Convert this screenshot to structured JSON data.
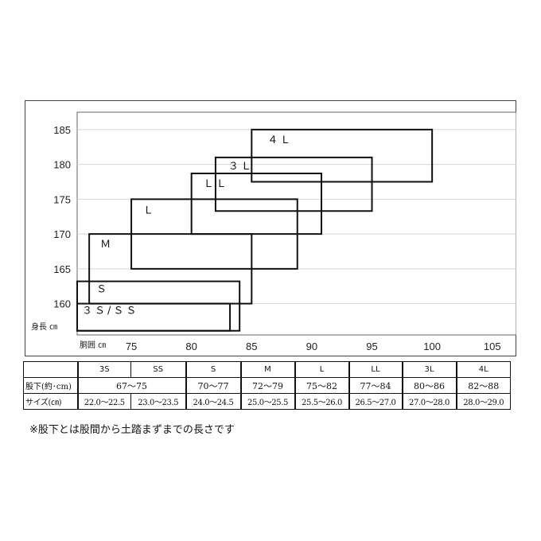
{
  "chart_data": {
    "type": "box",
    "xlabel": "胴囲 ㎝",
    "ylabel": "身長 ㎝",
    "x_ticks": [
      75,
      80,
      85,
      90,
      95,
      100,
      105
    ],
    "y_ticks": [
      160,
      165,
      170,
      175,
      180,
      185
    ],
    "xlim": [
      70.5,
      107
    ],
    "ylim": [
      155.5,
      187.5
    ],
    "grid": "horizontal",
    "boxes": [
      {
        "label": "３Ｓ/ＳＳ",
        "x": [
          70.5,
          83.2
        ],
        "y": [
          156.1,
          160.0
        ]
      },
      {
        "label": "Ｓ",
        "x": [
          70.5,
          84.0
        ],
        "y": [
          156.1,
          163.2
        ]
      },
      {
        "label": "Ｍ",
        "x": [
          71.5,
          85.0
        ],
        "y": [
          160.0,
          170.0
        ]
      },
      {
        "label": "Ｌ",
        "x": [
          75.0,
          88.8
        ],
        "y": [
          165.0,
          175.0
        ]
      },
      {
        "label": "ＬＬ",
        "x": [
          80.0,
          90.8
        ],
        "y": [
          170.0,
          178.7
        ]
      },
      {
        "label": "３Ｌ",
        "x": [
          82.0,
          95.0
        ],
        "y": [
          173.3,
          181.0
        ]
      },
      {
        "label": "４Ｌ",
        "x": [
          85.0,
          100.0
        ],
        "y": [
          177.5,
          185.0
        ]
      }
    ]
  },
  "table": {
    "header": [
      "",
      "3S",
      "SS",
      "S",
      "M",
      "L",
      "LL",
      "3L",
      "4L"
    ],
    "rows": [
      {
        "label": "股下(約･cm)",
        "cells": [
          "67～75",
          "70～77",
          "72～79",
          "75～82",
          "77～84",
          "80～86",
          "82～88"
        ]
      },
      {
        "label": "サイズ(㎝)",
        "cells": [
          "22.0～22.5",
          "23.0～23.5",
          "24.0～24.5",
          "25.0～25.5",
          "25.5～26.0",
          "26.5～27.0",
          "27.0～28.0",
          "28.0～29.0"
        ]
      }
    ]
  },
  "footnote": "※股下とは股間から土踏まずまでの長さです"
}
